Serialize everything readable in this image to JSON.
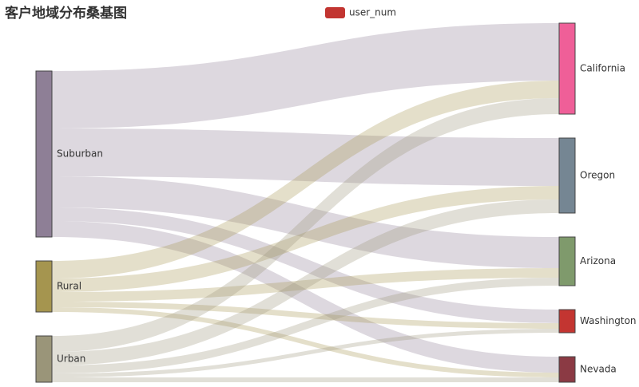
{
  "chart_data": {
    "type": "sankey",
    "title": "客户地域分布桑基图",
    "series_name": "user_num",
    "series_color": "#c23531",
    "nodes": [
      {
        "name": "Suburban",
        "color": "#8e7f96",
        "column": 0
      },
      {
        "name": "Rural",
        "color": "#a5954f",
        "column": 0
      },
      {
        "name": "Urban",
        "color": "#9a9579",
        "column": 0
      },
      {
        "name": "California",
        "color": "#ef5f98",
        "column": 1
      },
      {
        "name": "Oregon",
        "color": "#758693",
        "column": 1
      },
      {
        "name": "Arizona",
        "color": "#7f9a6c",
        "column": 1
      },
      {
        "name": "Washington",
        "color": "#c33531",
        "column": 1
      },
      {
        "name": "Nevada",
        "color": "#8b3a44",
        "column": 1
      }
    ],
    "links": [
      {
        "source": 0,
        "target": 3,
        "value": 72
      },
      {
        "source": 0,
        "target": 4,
        "value": 60
      },
      {
        "source": 0,
        "target": 5,
        "value": 39
      },
      {
        "source": 0,
        "target": 6,
        "value": 17
      },
      {
        "source": 0,
        "target": 7,
        "value": 20
      },
      {
        "source": 1,
        "target": 3,
        "value": 22
      },
      {
        "source": 1,
        "target": 4,
        "value": 17
      },
      {
        "source": 1,
        "target": 5,
        "value": 12
      },
      {
        "source": 1,
        "target": 6,
        "value": 7
      },
      {
        "source": 1,
        "target": 7,
        "value": 6
      },
      {
        "source": 2,
        "target": 3,
        "value": 20
      },
      {
        "source": 2,
        "target": 4,
        "value": 17
      },
      {
        "source": 2,
        "target": 5,
        "value": 10
      },
      {
        "source": 2,
        "target": 6,
        "value": 5
      },
      {
        "source": 2,
        "target": 7,
        "value": 6
      }
    ]
  }
}
